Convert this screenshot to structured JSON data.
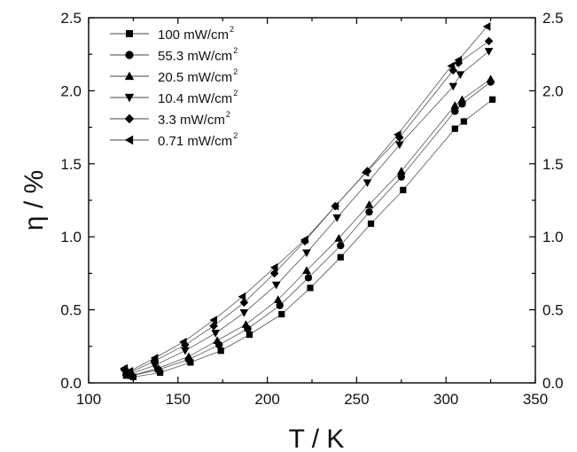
{
  "chart_data": {
    "type": "line",
    "xlabel": "T / K",
    "ylabel": "η / %",
    "xlim": [
      100,
      350
    ],
    "ylim": [
      0.0,
      2.5
    ],
    "x_ticks": [
      "100",
      "150",
      "200",
      "250",
      "300",
      "350"
    ],
    "y_ticks": [
      "0.0",
      "0.5",
      "1.0",
      "1.5",
      "2.0",
      "2.5"
    ],
    "right_y_ticks": [
      "0.0",
      "0.5",
      "1.0",
      "1.5",
      "2.0",
      "2.5"
    ],
    "legend_position": "top-left",
    "grid": false,
    "series": [
      {
        "name": "100 mW/cm2",
        "label_main": "100 mW/cm",
        "label_sup": "2",
        "marker": "square",
        "x": [
          121,
          125,
          140,
          157,
          174,
          190,
          208,
          224,
          241,
          258,
          276,
          305,
          310,
          326
        ],
        "y": [
          0.05,
          0.04,
          0.07,
          0.14,
          0.22,
          0.33,
          0.47,
          0.65,
          0.86,
          1.09,
          1.32,
          1.74,
          1.79,
          1.94
        ]
      },
      {
        "name": "55.3 mW/cm2",
        "label_main": "55.3 mW/cm",
        "label_sup": "2",
        "marker": "circle",
        "x": [
          121,
          124,
          139,
          156,
          173,
          189,
          207,
          223,
          241,
          257,
          275,
          305,
          309,
          325
        ],
        "y": [
          0.06,
          0.05,
          0.09,
          0.16,
          0.26,
          0.37,
          0.53,
          0.72,
          0.94,
          1.17,
          1.41,
          1.86,
          1.91,
          2.06
        ]
      },
      {
        "name": "20.5 mW/cm2",
        "label_main": "20.5 mW/cm",
        "label_sup": "2",
        "marker": "triangle-up",
        "x": [
          121,
          124,
          139,
          156,
          172,
          188,
          206,
          222,
          240,
          257,
          275,
          305,
          309,
          325
        ],
        "y": [
          0.07,
          0.05,
          0.1,
          0.18,
          0.29,
          0.4,
          0.57,
          0.77,
          0.99,
          1.22,
          1.45,
          1.9,
          1.94,
          2.08
        ]
      },
      {
        "name": "10.4 mW/cm2",
        "label_main": "10.4 mW/cm",
        "label_sup": "2",
        "marker": "triangle-down",
        "x": [
          120,
          123,
          137,
          154,
          171,
          187,
          205,
          222,
          239,
          256,
          274,
          304,
          308,
          324
        ],
        "y": [
          0.08,
          0.06,
          0.12,
          0.22,
          0.34,
          0.48,
          0.67,
          0.89,
          1.13,
          1.37,
          1.63,
          2.03,
          2.11,
          2.27
        ]
      },
      {
        "name": "3.3 mW/cm2",
        "label_main": "3.3 mW/cm",
        "label_sup": "2",
        "marker": "diamond",
        "x": [
          120,
          123,
          137,
          154,
          170,
          187,
          204,
          221,
          238,
          256,
          274,
          304,
          307,
          324
        ],
        "y": [
          0.09,
          0.07,
          0.15,
          0.26,
          0.39,
          0.55,
          0.75,
          0.97,
          1.21,
          1.45,
          1.68,
          2.14,
          2.19,
          2.34
        ]
      },
      {
        "name": "0.71 mW/cm2",
        "label_main": "0.71 mW/cm",
        "label_sup": "2",
        "marker": "triangle-left",
        "x": [
          120,
          123,
          137,
          153,
          170,
          186,
          204,
          221,
          238,
          255,
          273,
          303,
          307,
          323
        ],
        "y": [
          0.1,
          0.08,
          0.17,
          0.28,
          0.43,
          0.59,
          0.79,
          0.98,
          1.21,
          1.44,
          1.7,
          2.17,
          2.21,
          2.44
        ]
      }
    ]
  }
}
